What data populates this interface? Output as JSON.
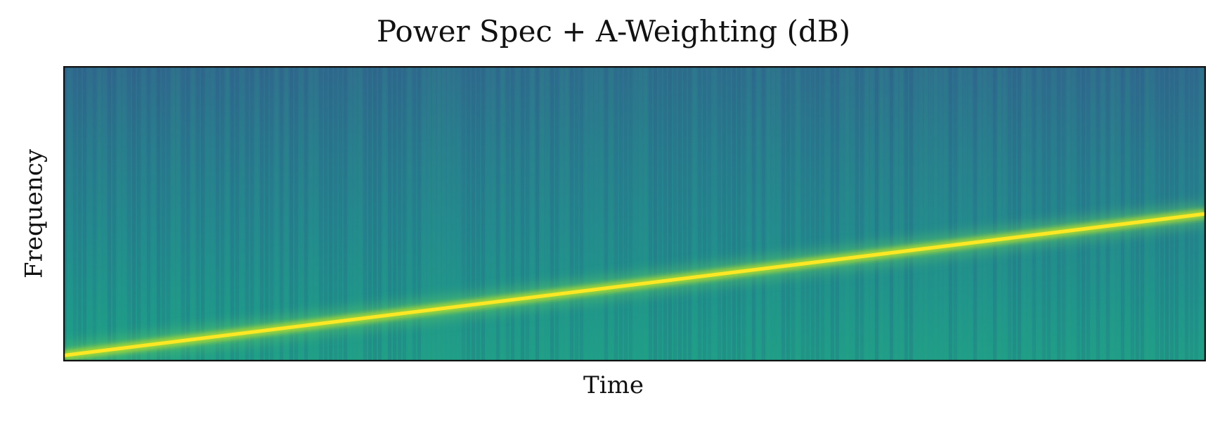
{
  "chart_data": {
    "type": "heatmap",
    "title": "Power Spec + A-Weighting (dB)",
    "xlabel": "Time",
    "ylabel": "Frequency",
    "x_ticks": [],
    "y_ticks": [],
    "colormap": "viridis",
    "colorbar": false,
    "grid": false,
    "legend": "none",
    "feature": {
      "kind": "linear chirp",
      "start": {
        "time_fraction": 0.0,
        "frequency_fraction": 0.02
      },
      "end": {
        "time_fraction": 1.0,
        "frequency_fraction": 0.5
      }
    },
    "colors": {
      "peak": "#fde725",
      "background": "#21918c",
      "low": "#3b528b"
    }
  }
}
